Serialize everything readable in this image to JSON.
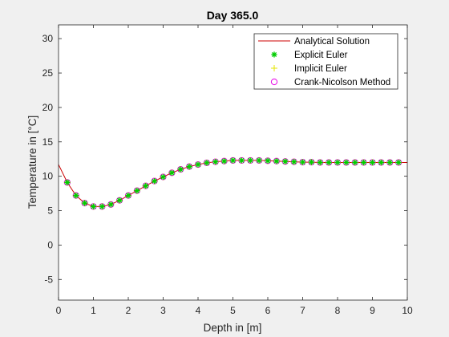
{
  "chart_data": {
    "type": "line",
    "title": "Day 365.0",
    "xlabel": "Depth in [m]",
    "ylabel": "Temperature in [°C]",
    "xlim": [
      0,
      10
    ],
    "ylim": [
      -8,
      32
    ],
    "xticks": [
      0,
      1,
      2,
      3,
      4,
      5,
      6,
      7,
      8,
      9,
      10
    ],
    "yticks": [
      -5,
      0,
      5,
      10,
      15,
      20,
      25,
      30
    ],
    "grid": false,
    "legend_position": "top-right",
    "analytical": {
      "name": "Analytical Solution",
      "color": "#cc0000",
      "x": [
        0,
        0.25,
        0.5,
        0.75,
        1.0,
        1.25,
        1.5,
        1.75,
        2.0,
        2.25,
        2.5,
        2.75,
        3.0,
        3.25,
        3.5,
        3.75,
        4.0,
        4.25,
        4.5,
        4.75,
        5.0,
        5.25,
        5.5,
        5.75,
        6.0,
        6.25,
        6.5,
        6.75,
        7.0,
        7.25,
        7.5,
        7.75,
        8.0,
        8.25,
        8.5,
        8.75,
        9.0,
        9.25,
        9.5,
        9.75,
        10.0
      ],
      "y": [
        11.7,
        9.1,
        7.2,
        6.1,
        5.6,
        5.6,
        5.9,
        6.5,
        7.2,
        7.9,
        8.6,
        9.3,
        9.9,
        10.5,
        11.0,
        11.4,
        11.7,
        11.95,
        12.1,
        12.2,
        12.3,
        12.3,
        12.3,
        12.3,
        12.25,
        12.2,
        12.15,
        12.1,
        12.05,
        12.05,
        12.0,
        12.0,
        12.0,
        12.0,
        12.0,
        12.0,
        12.0,
        12.0,
        12.0,
        12.0,
        12.0
      ]
    },
    "numerical_x": [
      0.25,
      0.5,
      0.75,
      1.0,
      1.25,
      1.5,
      1.75,
      2.0,
      2.25,
      2.5,
      2.75,
      3.0,
      3.25,
      3.5,
      3.75,
      4.0,
      4.25,
      4.5,
      4.75,
      5.0,
      5.25,
      5.5,
      5.75,
      6.0,
      6.25,
      6.5,
      6.75,
      7.0,
      7.25,
      7.5,
      7.75,
      8.0,
      8.25,
      8.5,
      8.75,
      9.0,
      9.25,
      9.5,
      9.75
    ],
    "numerical_y": [
      9.1,
      7.2,
      6.1,
      5.6,
      5.6,
      5.9,
      6.5,
      7.2,
      7.9,
      8.6,
      9.3,
      9.9,
      10.5,
      11.0,
      11.4,
      11.7,
      11.95,
      12.1,
      12.2,
      12.3,
      12.3,
      12.3,
      12.3,
      12.25,
      12.2,
      12.15,
      12.1,
      12.05,
      12.05,
      12.0,
      12.0,
      12.0,
      12.0,
      12.0,
      12.0,
      12.0,
      12.0,
      12.0,
      12.0
    ],
    "series": [
      {
        "name": "Explicit Euler",
        "marker": "asterisk",
        "color": "#00cc00"
      },
      {
        "name": "Implicit Euler",
        "marker": "plus",
        "color": "#e6e600"
      },
      {
        "name": "Crank-Nicolson Method",
        "marker": "circle",
        "color": "#e600e6"
      }
    ]
  }
}
